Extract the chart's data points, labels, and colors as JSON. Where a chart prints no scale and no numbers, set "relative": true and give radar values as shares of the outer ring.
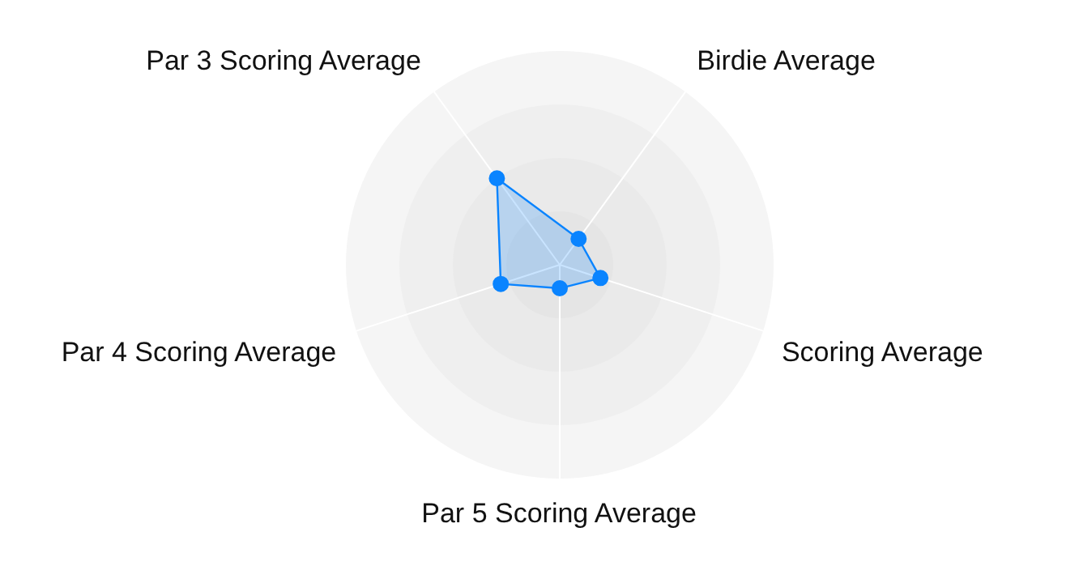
{
  "chart_data": {
    "type": "radar",
    "categories": [
      "Birdie Average",
      "Scoring Average",
      "Par 5 Scoring Average",
      "Par 4 Scoring Average",
      "Par 3 Scoring Average"
    ],
    "series": [
      {
        "color": "#0a84ff",
        "values": [
          0.15,
          0.2,
          0.11,
          0.29,
          0.5
        ]
      }
    ],
    "relative": true,
    "grid": true,
    "marker": "circle"
  }
}
